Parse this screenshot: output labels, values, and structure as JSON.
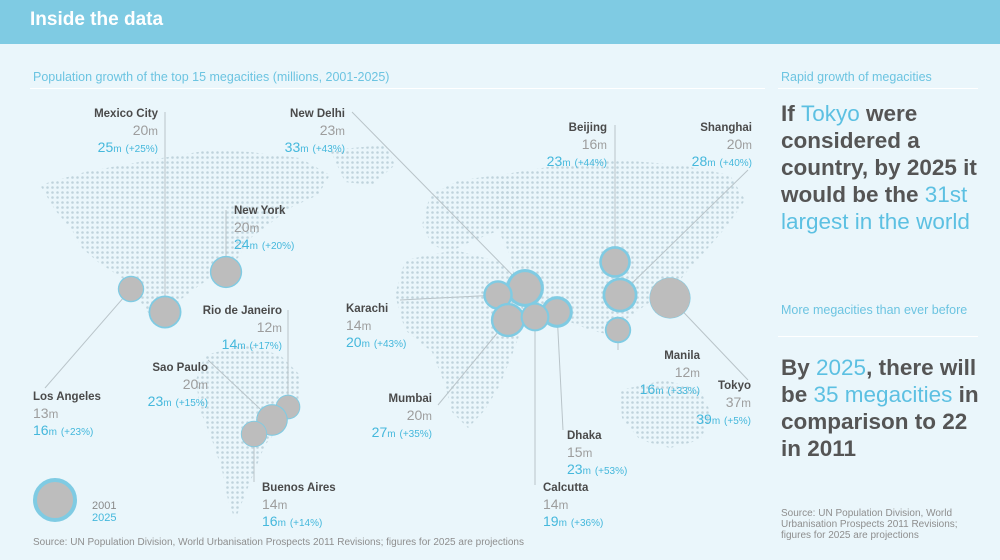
{
  "header": {
    "title": "Inside the data"
  },
  "map_title": "Population growth of the top 15 megacities (millions, 2001-2025)",
  "sidebar": {
    "title": "Rapid growth of megacities",
    "b1": {
      "pre": "If ",
      "hl1": "Tokyo",
      "mid": " were considered a country, by 2025 it would be the ",
      "hl2": "31st largest in the world"
    },
    "sub": "More megacities than ever before",
    "b2": {
      "pre": "By ",
      "hl1": "2025",
      "mid": ", there will be ",
      "hl2": "35 megacities",
      "post": " in comparison to 22 in 2011"
    },
    "source": "Source: UN Population Division, World Urbanisation Prospects 2011 Revisions; figures for 2025 are projections"
  },
  "footer_source": "Source: UN Population Division, World Urbanisation Prospects 2011 Revisions; figures for 2025 are projections",
  "legend": {
    "a": "2001",
    "b": "2025"
  },
  "unit": "m",
  "cities": [
    {
      "id": "mexico-city",
      "name": "Mexico City",
      "p2001": "20",
      "p2025": "25",
      "chg": "(+25%)"
    },
    {
      "id": "new-delhi",
      "name": "New Delhi",
      "p2001": "23",
      "p2025": "33",
      "chg": "(+43%)"
    },
    {
      "id": "beijing",
      "name": "Beijing",
      "p2001": "16",
      "p2025": "23",
      "chg": "(+44%)"
    },
    {
      "id": "shanghai",
      "name": "Shanghai",
      "p2001": "20",
      "p2025": "28",
      "chg": "(+40%)"
    },
    {
      "id": "new-york",
      "name": "New York",
      "p2001": "20",
      "p2025": "24",
      "chg": "(+20%)"
    },
    {
      "id": "rio-de-janeiro",
      "name": "Rio de Janeiro",
      "p2001": "12",
      "p2025": "14",
      "chg": "(+17%)"
    },
    {
      "id": "karachi",
      "name": "Karachi",
      "p2001": "14",
      "p2025": "20",
      "chg": "(+43%)"
    },
    {
      "id": "sao-paulo",
      "name": "Sao Paulo",
      "p2001": "20",
      "p2025": "23",
      "chg": "(+15%)"
    },
    {
      "id": "los-angeles",
      "name": "Los Angeles",
      "p2001": "13",
      "p2025": "16",
      "chg": "(+23%)"
    },
    {
      "id": "mumbai",
      "name": "Mumbai",
      "p2001": "20",
      "p2025": "27",
      "chg": "(+35%)"
    },
    {
      "id": "manila",
      "name": "Manila",
      "p2001": "12",
      "p2025": "16",
      "chg": "(+33%)"
    },
    {
      "id": "tokyo",
      "name": "Tokyo",
      "p2001": "37",
      "p2025": "39",
      "chg": "(+5%)"
    },
    {
      "id": "dhaka",
      "name": "Dhaka",
      "p2001": "15",
      "p2025": "23",
      "chg": "(+53%)"
    },
    {
      "id": "buenos-aires",
      "name": "Buenos Aires",
      "p2001": "14",
      "p2025": "16",
      "chg": "(+14%)"
    },
    {
      "id": "calcutta",
      "name": "Calcutta",
      "p2001": "14",
      "p2025": "19",
      "chg": "(+36%)"
    }
  ]
}
